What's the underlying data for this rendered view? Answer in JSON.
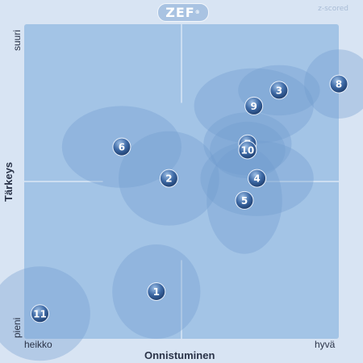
{
  "header": {
    "logo_text": "ZEF",
    "logo_mark": "®",
    "mode_label": "z-scored"
  },
  "axes": {
    "x_title": "Onnistuminen",
    "y_title": "Tärkeys",
    "x_low": "heikko",
    "x_high": "hyvä",
    "y_low": "pieni",
    "y_high": "suuri"
  },
  "chart_data": {
    "type": "scatter",
    "xlabel": "Onnistuminen",
    "ylabel": "Tärkeys",
    "x_range": [
      "heikko",
      "hyvä"
    ],
    "y_range": [
      "pieni",
      "suuri"
    ],
    "xlim": [
      0,
      1
    ],
    "ylim": [
      0,
      1
    ],
    "quadrant_center": [
      0.5,
      0.5
    ],
    "grid": false,
    "colors": {
      "plot_bg": "#a3c4e6",
      "bubble_fill": "#6f9bcd",
      "marker_fill": "#3e6aa6",
      "marker_text": "#ffffff",
      "divider": "#e6eef8"
    },
    "points": [
      {
        "label": "1",
        "x": 0.42,
        "y": 0.15,
        "spread_x": 0.14,
        "spread_y": 0.15
      },
      {
        "label": "2",
        "x": 0.46,
        "y": 0.51,
        "spread_x": 0.16,
        "spread_y": 0.15
      },
      {
        "label": "3",
        "x": 0.81,
        "y": 0.79,
        "spread_x": 0.13,
        "spread_y": 0.08
      },
      {
        "label": "4",
        "x": 0.74,
        "y": 0.51,
        "spread_x": 0.18,
        "spread_y": 0.12
      },
      {
        "label": "5",
        "x": 0.7,
        "y": 0.44,
        "spread_x": 0.12,
        "spread_y": 0.17
      },
      {
        "label": "6",
        "x": 0.31,
        "y": 0.61,
        "spread_x": 0.19,
        "spread_y": 0.13
      },
      {
        "label": "7",
        "x": 0.71,
        "y": 0.62,
        "spread_x": 0.14,
        "spread_y": 0.1
      },
      {
        "label": "8",
        "x": 1.0,
        "y": 0.81,
        "spread_x": 0.11,
        "spread_y": 0.11
      },
      {
        "label": "9",
        "x": 0.73,
        "y": 0.74,
        "spread_x": 0.19,
        "spread_y": 0.12
      },
      {
        "label": "10",
        "x": 0.71,
        "y": 0.6,
        "spread_x": 0.12,
        "spread_y": 0.09
      },
      {
        "label": "11",
        "x": 0.05,
        "y": 0.08,
        "spread_x": 0.16,
        "spread_y": 0.15
      }
    ]
  }
}
